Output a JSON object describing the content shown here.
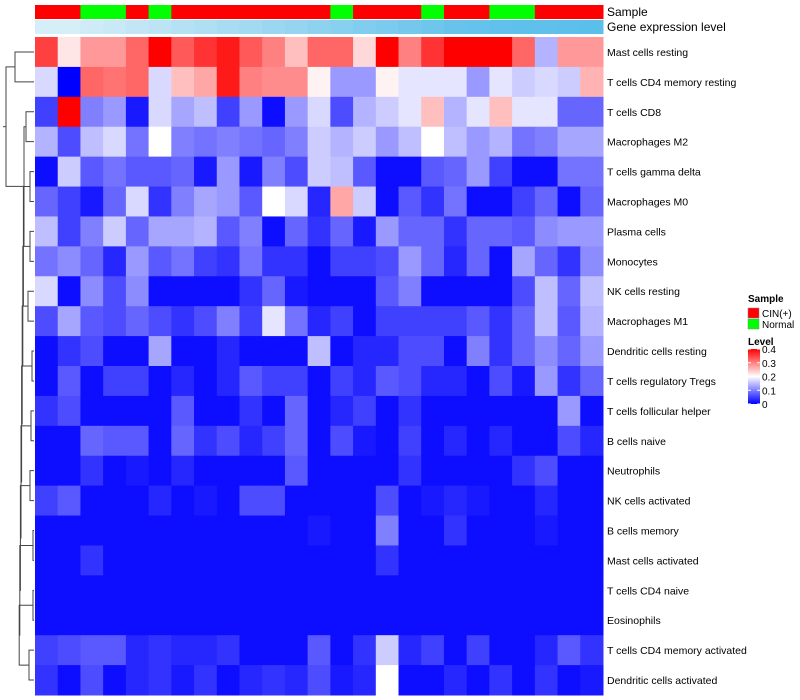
{
  "chart_data": {
    "type": "heatmap",
    "value_range": [
      0,
      0.4
    ],
    "color_stops": [
      {
        "value": 0,
        "color": "#0000FF"
      },
      {
        "value": 0.2,
        "color": "#FFFFFF"
      },
      {
        "value": 0.4,
        "color": "#FF0000"
      }
    ],
    "sample_colors": {
      "CIN(+)": "#FF0000",
      "Normal": "#00FF00"
    },
    "annotations": [
      {
        "name": "Sample",
        "values": [
          "CIN(+)",
          "CIN(+)",
          "Normal",
          "Normal",
          "CIN(+)",
          "Normal",
          "CIN(+)",
          "CIN(+)",
          "CIN(+)",
          "CIN(+)",
          "CIN(+)",
          "CIN(+)",
          "CIN(+)",
          "Normal",
          "CIN(+)",
          "CIN(+)",
          "CIN(+)",
          "Normal",
          "CIN(+)",
          "CIN(+)",
          "Normal",
          "Normal",
          "CIN(+)",
          "CIN(+)",
          "CIN(+)"
        ]
      },
      {
        "name": "Gene expression level",
        "values": [
          0.05,
          0.05,
          0.1,
          0.15,
          0.2,
          0.25,
          0.3,
          0.35,
          0.4,
          0.45,
          0.5,
          0.55,
          0.6,
          0.65,
          0.7,
          0.75,
          0.8,
          0.85,
          0.9,
          0.92,
          0.94,
          0.96,
          0.97,
          0.98,
          0.99
        ]
      }
    ],
    "rows": [
      "Mast cells resting",
      "T cells CD4 memory resting",
      "T cells CD8",
      "Macrophages M2",
      "T cells gamma delta",
      "Macrophages M0",
      "Plasma cells",
      "Monocytes",
      "NK cells resting",
      "Macrophages M1",
      "Dendritic cells resting",
      "T cells regulatory  Tregs",
      "T cells follicular helper",
      "B cells naive",
      "Neutrophils",
      "NK cells activated",
      "B cells memory",
      "Mast cells activated",
      "T cells CD4 naive",
      "Eosinophils",
      "T cells CD4 memory activated",
      "Dendritic cells activated"
    ],
    "values": [
      [
        0.35,
        0.22,
        0.28,
        0.28,
        0.32,
        0.4,
        0.33,
        0.36,
        0.38,
        0.33,
        0.3,
        0.25,
        0.32,
        0.32,
        0.23,
        0.4,
        0.3,
        0.36,
        0.4,
        0.4,
        0.4,
        0.32,
        0.14,
        0.28,
        0.28
      ],
      [
        0.17,
        0.0,
        0.32,
        0.31,
        0.32,
        0.17,
        0.25,
        0.27,
        0.38,
        0.3,
        0.29,
        0.29,
        0.21,
        0.12,
        0.12,
        0.21,
        0.18,
        0.18,
        0.18,
        0.12,
        0.18,
        0.16,
        0.17,
        0.16,
        0.26
      ],
      [
        0.05,
        0.4,
        0.1,
        0.12,
        0.02,
        0.17,
        0.13,
        0.15,
        0.05,
        0.12,
        0.01,
        0.12,
        0.17,
        0.06,
        0.14,
        0.16,
        0.18,
        0.25,
        0.14,
        0.18,
        0.25,
        0.18,
        0.18,
        0.08,
        0.08
      ],
      [
        0.14,
        0.06,
        0.15,
        0.17,
        0.09,
        0.2,
        0.1,
        0.09,
        0.1,
        0.09,
        0.08,
        0.1,
        0.16,
        0.14,
        0.16,
        0.12,
        0.15,
        0.2,
        0.15,
        0.12,
        0.14,
        0.09,
        0.1,
        0.13,
        0.13
      ],
      [
        0.01,
        0.16,
        0.07,
        0.09,
        0.07,
        0.07,
        0.08,
        0.02,
        0.12,
        0.02,
        0.1,
        0.06,
        0.16,
        0.15,
        0.07,
        0.01,
        0.01,
        0.07,
        0.08,
        0.12,
        0.05,
        0.01,
        0.01,
        0.09,
        0.09
      ],
      [
        0.08,
        0.05,
        0.02,
        0.08,
        0.17,
        0.04,
        0.1,
        0.13,
        0.12,
        0.07,
        0.2,
        0.17,
        0.03,
        0.27,
        0.16,
        0.01,
        0.07,
        0.04,
        0.09,
        0.01,
        0.01,
        0.05,
        0.08,
        0.01,
        0.08
      ],
      [
        0.15,
        0.05,
        0.1,
        0.16,
        0.08,
        0.13,
        0.13,
        0.14,
        0.07,
        0.1,
        0.01,
        0.08,
        0.04,
        0.08,
        0.02,
        0.12,
        0.08,
        0.08,
        0.04,
        0.08,
        0.08,
        0.07,
        0.11,
        0.12,
        0.12
      ],
      [
        0.09,
        0.11,
        0.08,
        0.03,
        0.12,
        0.07,
        0.09,
        0.05,
        0.04,
        0.09,
        0.04,
        0.04,
        0.01,
        0.05,
        0.05,
        0.06,
        0.12,
        0.08,
        0.03,
        0.08,
        0.01,
        0.13,
        0.08,
        0.04,
        0.11
      ],
      [
        0.17,
        0.01,
        0.11,
        0.06,
        0.11,
        0.01,
        0.01,
        0.01,
        0.01,
        0.04,
        0.08,
        0.02,
        0.01,
        0.01,
        0.01,
        0.07,
        0.1,
        0.01,
        0.01,
        0.01,
        0.01,
        0.06,
        0.15,
        0.08,
        0.15
      ],
      [
        0.06,
        0.13,
        0.07,
        0.06,
        0.08,
        0.06,
        0.04,
        0.06,
        0.1,
        0.05,
        0.18,
        0.09,
        0.03,
        0.05,
        0.01,
        0.05,
        0.05,
        0.05,
        0.05,
        0.07,
        0.04,
        0.08,
        0.15,
        0.07,
        0.14
      ],
      [
        0.01,
        0.04,
        0.06,
        0.01,
        0.01,
        0.13,
        0.01,
        0.01,
        0.03,
        0.01,
        0.01,
        0.01,
        0.15,
        0.01,
        0.03,
        0.03,
        0.06,
        0.06,
        0.01,
        0.1,
        0.04,
        0.08,
        0.11,
        0.08,
        0.12
      ],
      [
        0.01,
        0.07,
        0.01,
        0.05,
        0.05,
        0.01,
        0.03,
        0.01,
        0.03,
        0.07,
        0.05,
        0.05,
        0.01,
        0.05,
        0.03,
        0.07,
        0.06,
        0.03,
        0.03,
        0.01,
        0.06,
        0.02,
        0.12,
        0.04,
        0.08
      ],
      [
        0.04,
        0.06,
        0.01,
        0.01,
        0.01,
        0.01,
        0.07,
        0.01,
        0.01,
        0.04,
        0.01,
        0.08,
        0.01,
        0.03,
        0.05,
        0.01,
        0.04,
        0.01,
        0.01,
        0.01,
        0.01,
        0.01,
        0.01,
        0.12,
        0.01
      ],
      [
        0.01,
        0.01,
        0.08,
        0.07,
        0.07,
        0.01,
        0.08,
        0.04,
        0.06,
        0.03,
        0.05,
        0.08,
        0.01,
        0.06,
        0.02,
        0.01,
        0.05,
        0.01,
        0.03,
        0.01,
        0.03,
        0.01,
        0.01,
        0.06,
        0.03
      ],
      [
        0.01,
        0.01,
        0.04,
        0.01,
        0.02,
        0.01,
        0.03,
        0.01,
        0.01,
        0.01,
        0.01,
        0.07,
        0.01,
        0.01,
        0.01,
        0.01,
        0.04,
        0.01,
        0.01,
        0.01,
        0.01,
        0.04,
        0.06,
        0.01,
        0.01
      ],
      [
        0.05,
        0.07,
        0.01,
        0.01,
        0.01,
        0.03,
        0.01,
        0.02,
        0.01,
        0.06,
        0.06,
        0.01,
        0.01,
        0.01,
        0.01,
        0.06,
        0.01,
        0.02,
        0.03,
        0.02,
        0.01,
        0.01,
        0.03,
        0.01,
        0.01
      ],
      [
        0.01,
        0.01,
        0.01,
        0.01,
        0.01,
        0.01,
        0.01,
        0.01,
        0.01,
        0.01,
        0.01,
        0.01,
        0.02,
        0.01,
        0.01,
        0.1,
        0.01,
        0.01,
        0.04,
        0.01,
        0.01,
        0.01,
        0.02,
        0.01,
        0.01
      ],
      [
        0.01,
        0.01,
        0.04,
        0.01,
        0.01,
        0.01,
        0.01,
        0.01,
        0.01,
        0.01,
        0.01,
        0.01,
        0.01,
        0.01,
        0.01,
        0.04,
        0.01,
        0.01,
        0.01,
        0.01,
        0.01,
        0.01,
        0.01,
        0.01,
        0.01
      ],
      [
        0.01,
        0.01,
        0.01,
        0.01,
        0.01,
        0.01,
        0.01,
        0.01,
        0.01,
        0.01,
        0.01,
        0.01,
        0.01,
        0.01,
        0.01,
        0.01,
        0.01,
        0.01,
        0.01,
        0.01,
        0.01,
        0.01,
        0.01,
        0.01,
        0.01
      ],
      [
        0.01,
        0.01,
        0.01,
        0.01,
        0.01,
        0.01,
        0.01,
        0.01,
        0.01,
        0.01,
        0.01,
        0.01,
        0.01,
        0.01,
        0.01,
        0.01,
        0.01,
        0.01,
        0.01,
        0.01,
        0.01,
        0.01,
        0.01,
        0.01,
        0.01
      ],
      [
        0.05,
        0.06,
        0.07,
        0.07,
        0.03,
        0.04,
        0.03,
        0.03,
        0.04,
        0.01,
        0.01,
        0.01,
        0.07,
        0.01,
        0.04,
        0.16,
        0.03,
        0.05,
        0.01,
        0.05,
        0.01,
        0.01,
        0.03,
        0.07,
        0.04
      ],
      [
        0.04,
        0.01,
        0.06,
        0.01,
        0.03,
        0.04,
        0.02,
        0.04,
        0.01,
        0.03,
        0.04,
        0.03,
        0.06,
        0.02,
        0.03,
        0.2,
        0.01,
        0.01,
        0.03,
        0.01,
        0.04,
        0.01,
        0.04,
        0.01,
        0.02
      ]
    ],
    "legend": [
      {
        "title": "Sample",
        "entries": [
          "CIN(+)",
          "Normal"
        ]
      },
      {
        "title": "Level",
        "ticks": [
          "0.4",
          "0.3",
          "0.2",
          "0.1",
          "0"
        ],
        "tick_values": [
          0.4,
          0.3,
          0.2,
          0.1,
          0
        ]
      }
    ]
  }
}
